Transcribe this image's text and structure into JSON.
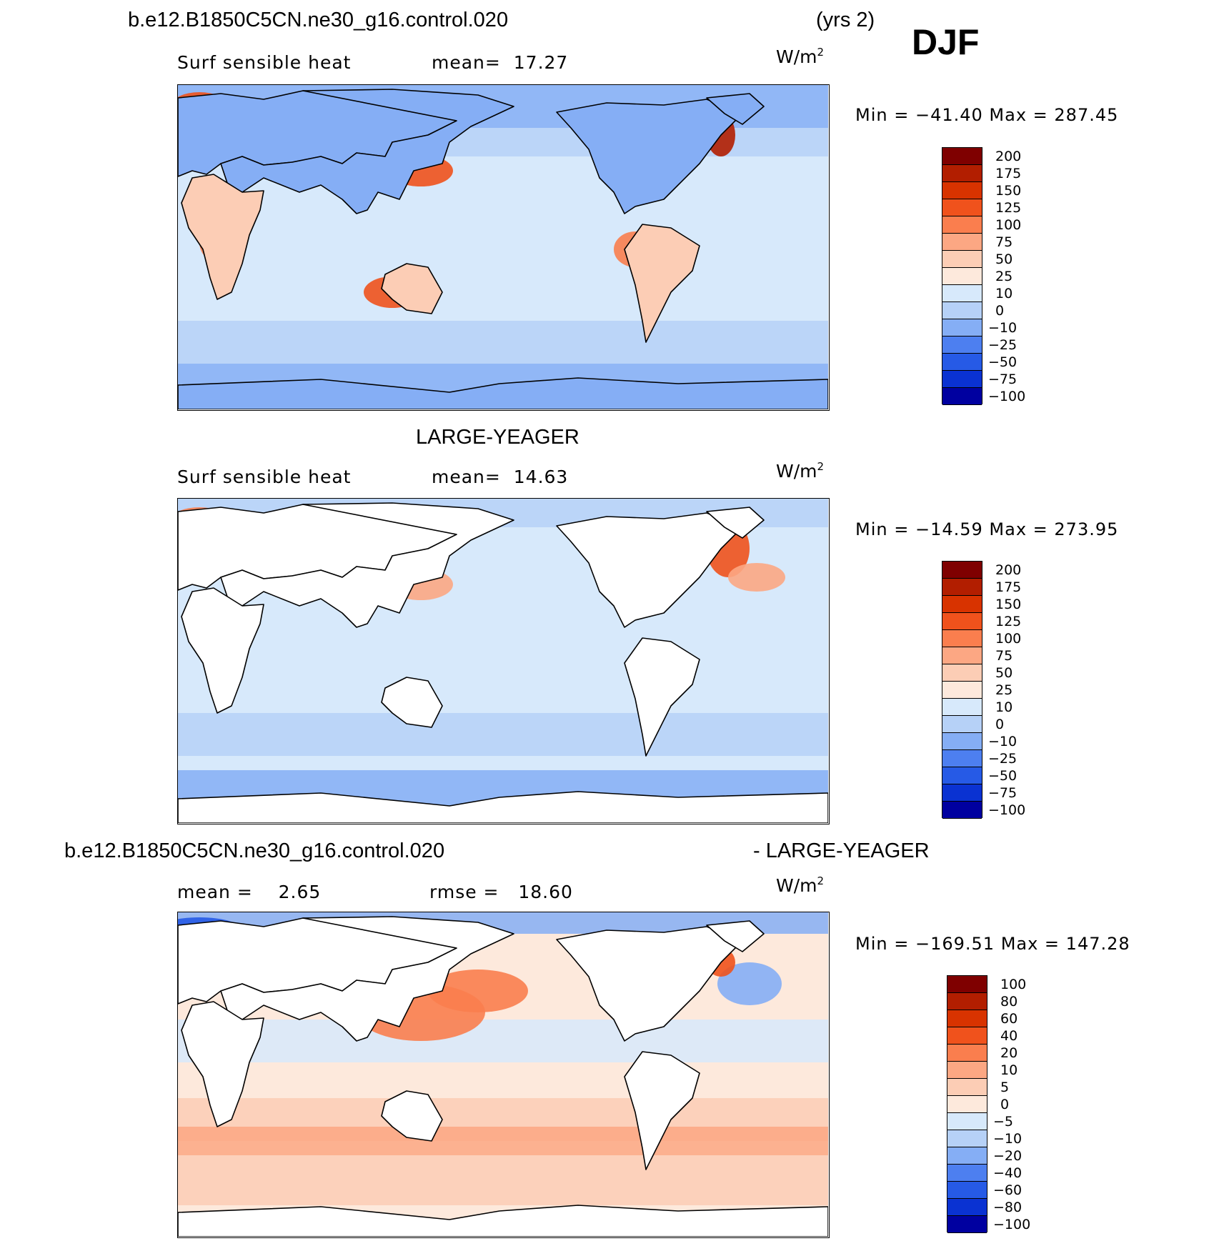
{
  "figure": {
    "case_name": "b.e12.B1850C5CN.ne30_g16.control.020",
    "years": "(yrs 2)",
    "season": "DJF"
  },
  "chart_data": [
    {
      "type": "heatmap",
      "title": "b.e12.B1850C5CN.ne30_g16.control.020",
      "variable": "Surf sensible heat",
      "mean_label": "mean=",
      "mean_value": "17.27",
      "units": "W/m",
      "units_exp": "2",
      "min_label": "Min = ",
      "min_value": "−41.40",
      "max_label": "Max = ",
      "max_value": "287.45",
      "levels": [
        "200",
        "175",
        "150",
        "125",
        "100",
        "75",
        "50",
        "25",
        "10",
        "0",
        "−10",
        "−25",
        "−50",
        "−75",
        "−100"
      ],
      "colors": [
        "#7f0000",
        "#b21e00",
        "#d83300",
        "#f0521c",
        "#fa7e4e",
        "#fca783",
        "#fccdb5",
        "#fde9dc",
        "#d7e9fb",
        "#b6d1f7",
        "#85aef5",
        "#4d7ff0",
        "#265ae6",
        "#0a32d2",
        "#0000a0"
      ],
      "land_field": true
    },
    {
      "type": "heatmap",
      "title": "LARGE-YEAGER",
      "variable": "Surf sensible heat",
      "mean_label": "mean=",
      "mean_value": "14.63",
      "units": "W/m",
      "units_exp": "2",
      "min_label": "Min = ",
      "min_value": "−14.59",
      "max_label": "Max = ",
      "max_value": "273.95",
      "levels": [
        "200",
        "175",
        "150",
        "125",
        "100",
        "75",
        "50",
        "25",
        "10",
        "0",
        "−10",
        "−25",
        "−50",
        "−75",
        "−100"
      ],
      "colors": [
        "#7f0000",
        "#b21e00",
        "#d83300",
        "#f0521c",
        "#fa7e4e",
        "#fca783",
        "#fccdb5",
        "#fde9dc",
        "#d7e9fb",
        "#b6d1f7",
        "#85aef5",
        "#4d7ff0",
        "#265ae6",
        "#0a32d2",
        "#0000a0"
      ],
      "land_field": false
    },
    {
      "type": "heatmap",
      "title_left": "b.e12.B1850C5CN.ne30_g16.control.020",
      "title_right": "- LARGE-YEAGER",
      "mean_label": "mean =",
      "mean_value": "2.65",
      "rmse_label": "rmse =",
      "rmse_value": "18.60",
      "units": "W/m",
      "units_exp": "2",
      "min_label": "Min = ",
      "min_value": "−169.51",
      "max_label": "Max = ",
      "max_value": "147.28",
      "levels": [
        "100",
        "80",
        "60",
        "40",
        "20",
        "10",
        "5",
        "0",
        "−5",
        "−10",
        "−20",
        "−40",
        "−60",
        "−80",
        "−100"
      ],
      "colors": [
        "#7f0000",
        "#b21e00",
        "#d83300",
        "#f0521c",
        "#fa7e4e",
        "#fca783",
        "#fccdb5",
        "#fde9dc",
        "#d7e9fb",
        "#b6d1f7",
        "#85aef5",
        "#4d7ff0",
        "#265ae6",
        "#0a32d2",
        "#0000a0"
      ],
      "land_field": false
    }
  ]
}
